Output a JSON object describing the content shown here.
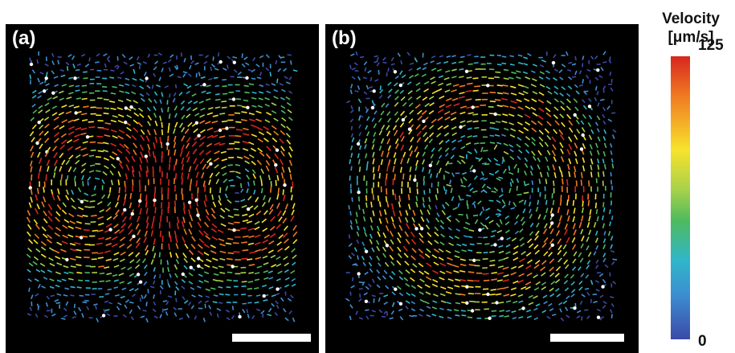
{
  "panels": [
    {
      "label": "(a)",
      "pattern": "two-vortices",
      "scale_bar": true
    },
    {
      "label": "(b)",
      "pattern": "single-ring-vortex",
      "scale_bar": true
    }
  ],
  "colorbar": {
    "title_line1": "Velocity",
    "title_line2": "[μm/s]",
    "max_label": "125",
    "min_label": "0",
    "colors": [
      "#d7261e",
      "#f07a22",
      "#f7e32c",
      "#a8d24a",
      "#4fba5e",
      "#30b6c9",
      "#3c8fd1",
      "#3b4aa8"
    ]
  }
}
